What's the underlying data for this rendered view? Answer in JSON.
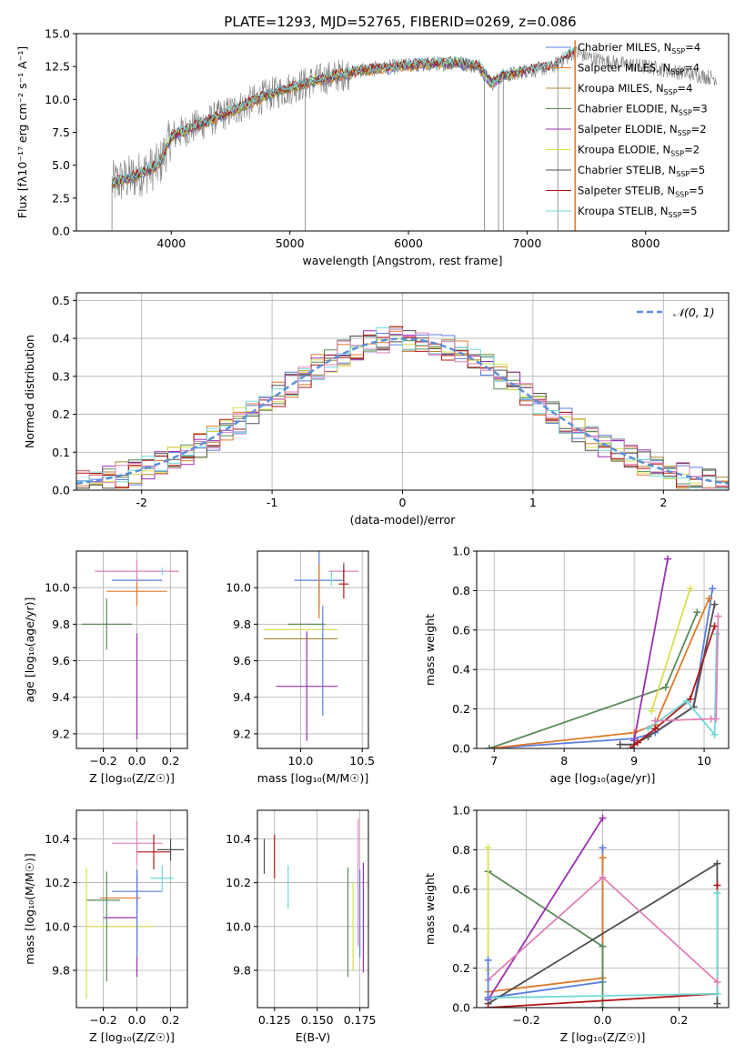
{
  "figure": {
    "title": "PLATE=1293, MJD=52765, FIBERID=0269, z=0.086"
  },
  "colors": {
    "Chabrier MILES": "#5b7fe0",
    "Salpeter MILES": "#e07828",
    "Kroupa MILES": "#a88a30",
    "Chabrier ELODIE": "#5a8a5a",
    "Salpeter ELODIE": "#9b30b0",
    "Kroupa ELODIE": "#d8e050",
    "Chabrier STELIB": "#505050",
    "Salpeter STELIB": "#b01818",
    "Kroupa STELIB": "#70d8d8",
    "pink": "#e080b8",
    "data": "#808080",
    "normal": "#5b8fd8"
  },
  "chart_data": [
    {
      "id": "spectrum",
      "type": "line",
      "title": "PLATE=1293, MJD=52765, FIBERID=0269, z=0.086",
      "xlabel": "wavelength [Angstrom, rest frame]",
      "ylabel": "Flux [fλ10⁻¹⁷ erg cm⁻² s⁻¹ A⁻¹]",
      "xlim": [
        3200,
        8700
      ],
      "ylim": [
        0,
        15
      ],
      "xticks": [
        4000,
        5000,
        6000,
        7000,
        8000
      ],
      "yticks": [
        0.0,
        2.5,
        5.0,
        7.5,
        10.0,
        12.5,
        15.0
      ],
      "legend_position": "upper-right",
      "legend": [
        {
          "name": "Chabrier MILES, N",
          "sub": "SSP",
          "tail": "=4"
        },
        {
          "name": "Salpeter MILES, N",
          "sub": "SSP",
          "tail": "=4"
        },
        {
          "name": "Kroupa MILES, N",
          "sub": "SSP",
          "tail": "=4"
        },
        {
          "name": "Chabrier ELODIE, N",
          "sub": "SSP",
          "tail": "=3"
        },
        {
          "name": "Salpeter ELODIE, N",
          "sub": "SSP",
          "tail": "=2"
        },
        {
          "name": "Kroupa ELODIE, N",
          "sub": "SSP",
          "tail": "=2"
        },
        {
          "name": "Chabrier STELIB, N",
          "sub": "SSP",
          "tail": "=5"
        },
        {
          "name": "Salpeter STELIB, N",
          "sub": "SSP",
          "tail": "=5"
        },
        {
          "name": "Kroupa STELIB, N",
          "sub": "SSP",
          "tail": "=5"
        }
      ],
      "continuum": {
        "x": [
          3500,
          3700,
          3900,
          4000,
          4300,
          4800,
          5200,
          5600,
          6000,
          6400,
          6600,
          6700,
          6800,
          7000,
          7200,
          7400,
          7600,
          7800,
          8000,
          8200,
          8400,
          8600
        ],
        "y": [
          3.6,
          4.2,
          5.0,
          7.2,
          8.3,
          10.3,
          11.4,
          12.2,
          12.6,
          12.8,
          12.5,
          11.2,
          11.8,
          12.2,
          12.4,
          13.6,
          13.0,
          12.7,
          12.5,
          12.2,
          11.9,
          11.6
        ]
      },
      "spectral_lines_x": [
        3500,
        5130,
        6640,
        6760,
        6800,
        7260,
        7405
      ]
    },
    {
      "id": "residuals",
      "type": "line",
      "xlabel": "(data-model)/error",
      "ylabel": "Normed distribution",
      "xlim": [
        -2.5,
        2.5
      ],
      "ylim": [
        0,
        0.52
      ],
      "xticks": [
        -2,
        -1,
        0,
        1,
        2
      ],
      "yticks": [
        0.0,
        0.1,
        0.2,
        0.3,
        0.4,
        0.5
      ],
      "legend_position": "upper-right",
      "legend": "𝒩(0, 1)",
      "bin_width": 0.1
    },
    {
      "id": "age_vs_Z",
      "type": "scatter",
      "xlabel": "Z [log₁₀(Z/Z☉)]",
      "ylabel": "age  [log₁₀(age/yr)]",
      "xlim": [
        -0.36,
        0.3
      ],
      "ylim": [
        9.12,
        10.2
      ],
      "xticks": [
        -0.2,
        0.0,
        0.2
      ],
      "xticklabels": [
        "−0.2",
        "0.0",
        "0.2"
      ],
      "yticks": [
        9.2,
        9.4,
        9.6,
        9.8,
        10.0
      ],
      "xticks_all": [
        -0.3,
        -0.2,
        -0.1,
        0.0,
        0.1,
        0.2
      ],
      "xticklabels_all": [
        "−0.3",
        "−0.2",
        "−0.1",
        "0.0",
        "0.1",
        "0.2"
      ],
      "points": [
        {
          "model": "Chabrier MILES",
          "x": 0.0,
          "y": 10.04,
          "xerr": 0.15,
          "yerr": 0.0
        },
        {
          "model": "Salpeter MILES",
          "x": 0.0,
          "y": 9.98,
          "xerr": 0.18,
          "yerr": 0.08
        },
        {
          "model": "pink",
          "x": 0.0,
          "y": 10.09,
          "xerr": 0.25,
          "yerr": 0.06
        },
        {
          "model": "Chabrier STELIB",
          "x": 0.15,
          "y": 10.09,
          "xerr": 0.0,
          "yerr": 0.0
        },
        {
          "model": "Kroupa STELIB",
          "x": 0.15,
          "y": 10.09,
          "xerr": 0.0,
          "yerr": 0.02
        },
        {
          "model": "Salpeter STELIB",
          "x": 0.15,
          "y": 10.09,
          "xerr": 0.0,
          "yerr": 0.0
        },
        {
          "model": "Chabrier ELODIE",
          "x": -0.18,
          "y": 9.8,
          "xerr": 0.15,
          "yerr": 0.14
        },
        {
          "model": "Kroupa ELODIE",
          "x": -0.3,
          "y": 9.77,
          "xerr": 0.0,
          "yerr": 0.0
        },
        {
          "model": "Salpeter ELODIE",
          "x": -0.3,
          "y": 9.46,
          "xerr": 0.0,
          "yerr": 0.0
        },
        {
          "model": "Salpeter ELODIE",
          "x": 0.0,
          "y": 9.46,
          "xerr": 0.0,
          "yerr": 0.29
        }
      ]
    },
    {
      "id": "age_vs_mass",
      "type": "scatter",
      "xlabel": "mass [log₁₀(M/M☉)]",
      "ylabel": "",
      "xlim": [
        9.65,
        10.55
      ],
      "ylim": [
        9.12,
        10.2
      ],
      "xticks": [
        10.0,
        10.5
      ],
      "xticklabels": [
        "10.0",
        "10.5"
      ],
      "yticks": [
        9.2,
        9.4,
        9.6,
        9.8,
        10.0
      ],
      "points": [
        {
          "model": "Chabrier MILES",
          "x": 10.15,
          "y": 10.04,
          "xerr": 0.2,
          "yerr": 0.16
        },
        {
          "model": "Salpeter MILES",
          "x": 10.15,
          "y": 9.98,
          "xerr": 0.0,
          "yerr": 0.15
        },
        {
          "model": "pink",
          "x": 10.35,
          "y": 10.09,
          "xerr": 0.12,
          "yerr": 0.05
        },
        {
          "model": "Chabrier STELIB",
          "x": 10.35,
          "y": 10.09,
          "xerr": 0.0,
          "yerr": 0.04
        },
        {
          "model": "Kroupa STELIB",
          "x": 10.25,
          "y": 10.05,
          "xerr": 0.0,
          "yerr": 0.04
        },
        {
          "model": "Salpeter STELIB",
          "x": 10.35,
          "y": 10.02,
          "xerr": 0.04,
          "yerr": 0.08
        },
        {
          "model": "Chabrier ELODIE",
          "x": 10.05,
          "y": 9.8,
          "xerr": 0.15,
          "yerr": 0.0
        },
        {
          "model": "Kroupa ELODIE",
          "x": 10.0,
          "y": 9.77,
          "xerr": 0.3,
          "yerr": 0.0
        },
        {
          "model": "Kroupa MILES",
          "x": 10.0,
          "y": 9.72,
          "xerr": 0.3,
          "yerr": 0.0
        },
        {
          "model": "Salpeter ELODIE",
          "x": 10.05,
          "y": 9.46,
          "xerr": 0.25,
          "yerr": 0.3
        },
        {
          "model": "Chabrier MILES",
          "x": 10.18,
          "y": 9.6,
          "xerr": 0.0,
          "yerr": 0.3
        }
      ]
    },
    {
      "id": "weight_vs_age",
      "type": "line",
      "xlabel": "age  [log₁₀(age/yr)]",
      "ylabel": "mass weight",
      "xlim": [
        6.75,
        10.35
      ],
      "ylim": [
        0,
        1
      ],
      "xticks": [
        7,
        8,
        9,
        10
      ],
      "yticks": [
        0.0,
        0.2,
        0.4,
        0.6,
        0.8,
        1.0
      ],
      "series": [
        {
          "model": "Chabrier MILES",
          "x": [
            6.93,
            9.0,
            9.3,
            9.85,
            10.12
          ],
          "y": [
            0.0,
            0.05,
            0.08,
            0.21,
            0.81
          ]
        },
        {
          "model": "Salpeter MILES",
          "x": [
            6.93,
            9.0,
            9.3,
            10.07
          ],
          "y": [
            0.0,
            0.08,
            0.12,
            0.76
          ]
        },
        {
          "model": "Chabrier ELODIE",
          "x": [
            6.93,
            9.45,
            9.9
          ],
          "y": [
            0.0,
            0.31,
            0.69
          ]
        },
        {
          "model": "Salpeter ELODIE",
          "x": [
            9.0,
            9.48
          ],
          "y": [
            0.04,
            0.96
          ]
        },
        {
          "model": "Kroupa ELODIE",
          "x": [
            9.25,
            9.8
          ],
          "y": [
            0.19,
            0.81
          ]
        },
        {
          "model": "Chabrier STELIB",
          "x": [
            8.8,
            9.0,
            9.2,
            9.85,
            10.15
          ],
          "y": [
            0.02,
            0.02,
            0.06,
            0.21,
            0.73
          ]
        },
        {
          "model": "Salpeter STELIB",
          "x": [
            8.95,
            9.05,
            9.3,
            9.8,
            10.15
          ],
          "y": [
            0.0,
            0.03,
            0.1,
            0.25,
            0.62
          ]
        },
        {
          "model": "Kroupa STELIB",
          "x": [
            9.2,
            9.75,
            10.15,
            10.18
          ],
          "y": [
            0.1,
            0.24,
            0.07,
            0.58
          ]
        },
        {
          "model": "pink",
          "x": [
            9.3,
            10.1,
            10.17,
            10.2
          ],
          "y": [
            0.14,
            0.15,
            0.15,
            0.67
          ]
        }
      ]
    },
    {
      "id": "mass_vs_Z",
      "type": "scatter",
      "xlabel": "Z [log₁₀(Z/Z☉)]",
      "ylabel": "mass [log₁₀(M/M☉)]",
      "xlim": [
        -0.36,
        0.3
      ],
      "ylim": [
        9.63,
        10.53
      ],
      "xticks": [
        -0.2,
        0.0,
        0.2
      ],
      "xticklabels": [
        "−0.2",
        "0.0",
        "0.2"
      ],
      "yticks": [
        9.8,
        10.0,
        10.2,
        10.4
      ],
      "points": [
        {
          "model": "pink",
          "x": 0.0,
          "y": 10.38,
          "xerr": 0.15,
          "yerr": 0.1
        },
        {
          "model": "Salpeter STELIB",
          "x": 0.1,
          "y": 10.34,
          "xerr": 0.1,
          "yerr": 0.08
        },
        {
          "model": "Chabrier STELIB",
          "x": 0.2,
          "y": 10.35,
          "xerr": 0.08,
          "yerr": 0.05
        },
        {
          "model": "Kroupa STELIB",
          "x": 0.15,
          "y": 10.22,
          "xerr": 0.07,
          "yerr": 0.06
        },
        {
          "model": "Chabrier MILES",
          "x": 0.0,
          "y": 10.16,
          "xerr": 0.15,
          "yerr": 0.1
        },
        {
          "model": "Salpeter MILES",
          "x": -0.1,
          "y": 10.13,
          "xerr": 0.12,
          "yerr": 0.0
        },
        {
          "model": "Chabrier ELODIE",
          "x": -0.2,
          "y": 10.12,
          "xerr": 0.1,
          "yerr": 0.0
        },
        {
          "model": "Salpeter ELODIE",
          "x": -0.1,
          "y": 10.04,
          "xerr": 0.1,
          "yerr": 0.0
        },
        {
          "model": "Kroupa ELODIE",
          "x": -0.1,
          "y": 10.0,
          "xerr": 0.2,
          "yerr": 0.0
        },
        {
          "model": "Kroupa ELODIE",
          "x": -0.3,
          "y": 9.97,
          "xerr": 0.0,
          "yerr": 0.3
        },
        {
          "model": "Chabrier ELODIE",
          "x": -0.18,
          "y": 10.0,
          "xerr": 0.0,
          "yerr": 0.25
        },
        {
          "model": "Salpeter ELODIE",
          "x": 0.0,
          "y": 10.0,
          "xerr": 0.0,
          "yerr": 0.23
        },
        {
          "model": "Chabrier MILES",
          "x": 0.0,
          "y": 10.06,
          "xerr": 0.0,
          "yerr": 0.2
        }
      ]
    },
    {
      "id": "mass_vs_ebv",
      "type": "scatter",
      "xlabel": "E(B-V)",
      "ylabel": "",
      "xlim": [
        0.115,
        0.18
      ],
      "ylim": [
        9.63,
        10.53
      ],
      "xticks": [
        0.125,
        0.15,
        0.175
      ],
      "xticklabels": [
        "0.125",
        "0.150",
        "0.175"
      ],
      "yticks": [
        9.8,
        10.0,
        10.2,
        10.4
      ],
      "points": [
        {
          "model": "Chabrier STELIB",
          "x": 0.119,
          "y": 10.32,
          "xerr": 0.0,
          "yerr": 0.08
        },
        {
          "model": "Salpeter STELIB",
          "x": 0.125,
          "y": 10.32,
          "xerr": 0.0,
          "yerr": 0.1
        },
        {
          "model": "Kroupa STELIB",
          "x": 0.133,
          "y": 10.18,
          "xerr": 0.0,
          "yerr": 0.1
        },
        {
          "model": "Chabrier ELODIE",
          "x": 0.168,
          "y": 10.02,
          "xerr": 0.0,
          "yerr": 0.25
        },
        {
          "model": "Kroupa ELODIE",
          "x": 0.171,
          "y": 10.0,
          "xerr": 0.0,
          "yerr": 0.2
        },
        {
          "model": "pink",
          "x": 0.174,
          "y": 10.2,
          "xerr": 0.0,
          "yerr": 0.29
        },
        {
          "model": "Chabrier MILES",
          "x": 0.175,
          "y": 10.06,
          "xerr": 0.0,
          "yerr": 0.2
        },
        {
          "model": "Salpeter ELODIE",
          "x": 0.177,
          "y": 10.04,
          "xerr": 0.0,
          "yerr": 0.25
        }
      ]
    },
    {
      "id": "weight_vs_Z",
      "type": "line",
      "xlabel": "Z [log₁₀(Z/Z☉)]",
      "ylabel": "mass weight",
      "xlim": [
        -0.33,
        0.33
      ],
      "ylim": [
        0,
        1
      ],
      "xticks": [
        -0.2,
        0.0,
        0.2
      ],
      "xticklabels": [
        "−0.2",
        "0.0",
        "0.2"
      ],
      "yticks": [
        0.0,
        0.2,
        0.4,
        0.6,
        0.8,
        1.0
      ],
      "series": [
        {
          "model": "Chabrier MILES",
          "x": [
            -0.3,
            0.0,
            0.0
          ],
          "y": [
            0.05,
            0.13,
            0.81
          ]
        },
        {
          "model": "Salpeter MILES",
          "x": [
            -0.3,
            0.0,
            0.0
          ],
          "y": [
            0.08,
            0.15,
            0.76
          ]
        },
        {
          "model": "Chabrier ELODIE",
          "x": [
            -0.3,
            0.0,
            0.0
          ],
          "y": [
            0.69,
            0.31,
            0.0
          ]
        },
        {
          "model": "Salpeter ELODIE",
          "x": [
            -0.3,
            0.0
          ],
          "y": [
            0.04,
            0.96
          ]
        },
        {
          "model": "Kroupa ELODIE",
          "x": [
            -0.3,
            -0.3
          ],
          "y": [
            0.19,
            0.81
          ]
        },
        {
          "model": "Chabrier STELIB",
          "x": [
            -0.3,
            0.3,
            0.3
          ],
          "y": [
            0.02,
            0.73,
            0.02
          ]
        },
        {
          "model": "Salpeter STELIB",
          "x": [
            -0.3,
            0.3,
            0.3
          ],
          "y": [
            0.0,
            0.07,
            0.62
          ]
        },
        {
          "model": "Kroupa STELIB",
          "x": [
            -0.3,
            0.3,
            0.3
          ],
          "y": [
            0.05,
            0.07,
            0.58
          ]
        },
        {
          "model": "pink",
          "x": [
            -0.3,
            0.0,
            0.3
          ],
          "y": [
            0.14,
            0.66,
            0.13
          ]
        },
        {
          "model": "Chabrier MILES",
          "x": [
            -0.3,
            -0.3
          ],
          "y": [
            0.05,
            0.24
          ]
        }
      ]
    }
  ]
}
